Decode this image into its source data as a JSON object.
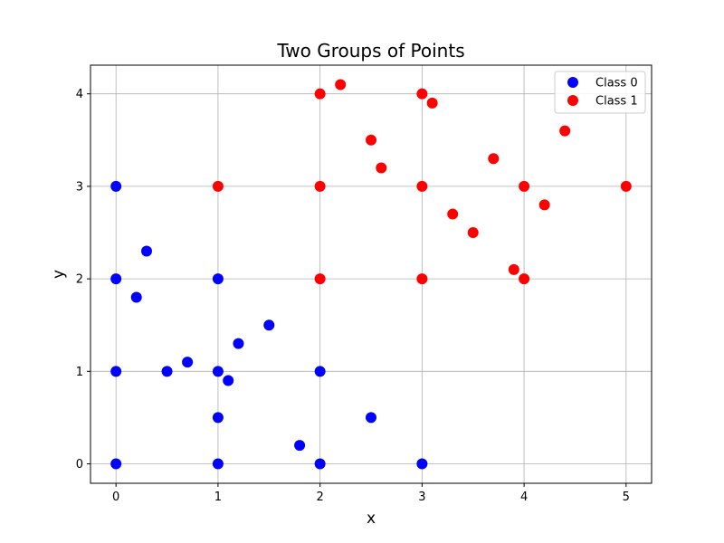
{
  "chart_data": {
    "type": "scatter",
    "title": "Two Groups of Points",
    "xlabel": "x",
    "ylabel": "y",
    "xlim": [
      -0.25,
      5.25
    ],
    "ylim": [
      -0.21,
      4.31
    ],
    "xticks": [
      0,
      1,
      2,
      3,
      4,
      5
    ],
    "yticks": [
      0,
      1,
      2,
      3,
      4
    ],
    "grid": true,
    "legend_position": "top-right",
    "series": [
      {
        "name": "Class 0",
        "color": "#0000ff",
        "points": [
          [
            0,
            0
          ],
          [
            0,
            1
          ],
          [
            0,
            2
          ],
          [
            0,
            3
          ],
          [
            0.2,
            1.8
          ],
          [
            0.3,
            2.3
          ],
          [
            0.5,
            1.0
          ],
          [
            0.7,
            1.1
          ],
          [
            1,
            0
          ],
          [
            1,
            0.5
          ],
          [
            1,
            1
          ],
          [
            1,
            2
          ],
          [
            1.1,
            0.9
          ],
          [
            1.2,
            1.3
          ],
          [
            1.5,
            1.5
          ],
          [
            1.8,
            0.2
          ],
          [
            2,
            0
          ],
          [
            2,
            1
          ],
          [
            2.5,
            0.5
          ],
          [
            3,
            0
          ]
        ]
      },
      {
        "name": "Class 1",
        "color": "#ff0000",
        "points": [
          [
            1,
            3
          ],
          [
            2,
            2
          ],
          [
            2,
            3
          ],
          [
            2,
            4
          ],
          [
            2.2,
            4.1
          ],
          [
            2.5,
            3.5
          ],
          [
            2.6,
            3.2
          ],
          [
            3,
            2
          ],
          [
            3,
            3
          ],
          [
            3,
            4
          ],
          [
            3.1,
            3.9
          ],
          [
            3.3,
            2.7
          ],
          [
            3.5,
            2.5
          ],
          [
            3.7,
            3.3
          ],
          [
            3.9,
            2.1
          ],
          [
            4,
            2
          ],
          [
            4,
            3
          ],
          [
            4.2,
            2.8
          ],
          [
            4.4,
            3.6
          ],
          [
            5,
            3
          ]
        ]
      }
    ]
  }
}
